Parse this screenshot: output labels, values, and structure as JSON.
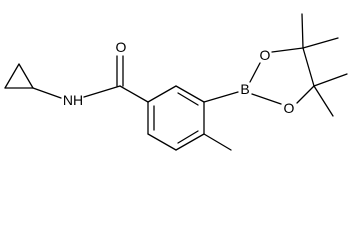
{
  "atoms": [
    {
      "label": "O"
    },
    {
      "label": "NH"
    },
    {
      "label": "B"
    },
    {
      "label": "O"
    },
    {
      "label": "O"
    }
  ]
}
